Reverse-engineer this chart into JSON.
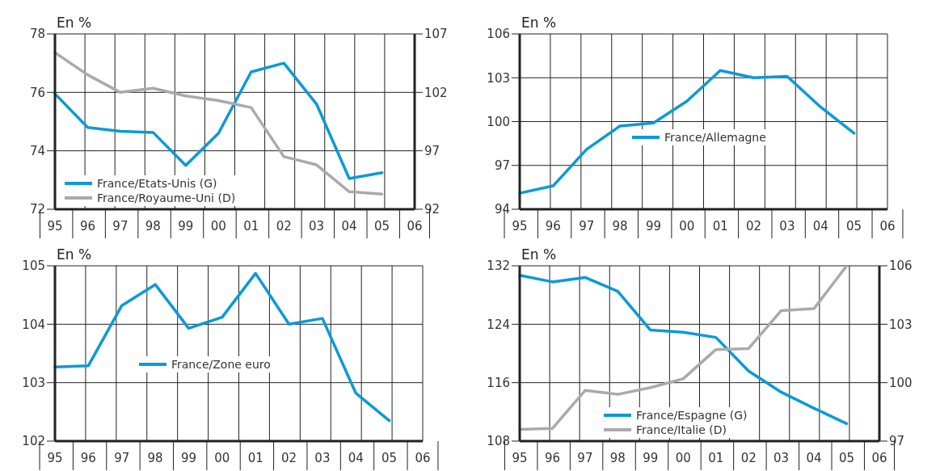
{
  "chart_data": [
    {
      "type": "line",
      "ylabel": "En %",
      "categories": [
        "95",
        "96",
        "97",
        "98",
        "99",
        "00",
        "01",
        "02",
        "03",
        "04",
        "05",
        "06"
      ],
      "ylim": [
        72,
        78
      ],
      "yticks": [
        72,
        74,
        76,
        78
      ],
      "y2lim": [
        92,
        107
      ],
      "y2ticks": [
        92,
        97,
        102,
        107
      ],
      "grid": true,
      "legend": "bottom left",
      "marker": "none",
      "line_style": "solid",
      "series": [
        {
          "name": "France/Etats-Unis (G)",
          "color": "#0a9ad7",
          "values": [
            75.95,
            74.8,
            74.67,
            74.63,
            73.5,
            74.6,
            76.7,
            77.0,
            75.6,
            73.05,
            73.25,
            null
          ]
        },
        {
          "name": "France/Royaume-Uni (D)",
          "color": "#aaaaaa",
          "axis": "y2",
          "values": [
            105.4,
            103.5,
            102.0,
            102.35,
            101.7,
            101.3,
            100.7,
            96.5,
            95.8,
            93.5,
            93.3,
            null
          ]
        }
      ]
    },
    {
      "type": "line",
      "ylabel": "En %",
      "categories": [
        "95",
        "96",
        "97",
        "98",
        "99",
        "00",
        "01",
        "02",
        "03",
        "04",
        "05",
        "06"
      ],
      "ylim": [
        94,
        106
      ],
      "yticks": [
        94,
        97,
        100,
        103,
        106
      ],
      "grid": true,
      "legend": "center",
      "marker": "none",
      "line_style": "solid",
      "series": [
        {
          "name": "France/Allemagne",
          "color": "#0a9ad7",
          "values": [
            95.1,
            95.6,
            98.1,
            99.7,
            99.9,
            101.4,
            103.5,
            103.0,
            103.1,
            101.0,
            99.2,
            null
          ]
        }
      ]
    },
    {
      "type": "line",
      "ylabel": "En %",
      "categories": [
        "95",
        "96",
        "97",
        "98",
        "99",
        "00",
        "01",
        "02",
        "03",
        "04",
        "05",
        "06"
      ],
      "ylim": [
        102,
        105
      ],
      "yticks": [
        102,
        103,
        104,
        105
      ],
      "grid": true,
      "legend": "center left",
      "marker": "none",
      "line_style": "solid",
      "series": [
        {
          "name": "France/Zone euro",
          "color": "#0a9ad7",
          "values": [
            103.27,
            103.29,
            104.32,
            104.68,
            103.93,
            104.12,
            104.87,
            104.0,
            104.1,
            102.82,
            102.35,
            null
          ]
        }
      ]
    },
    {
      "type": "line",
      "ylabel": "En %",
      "categories": [
        "95",
        "96",
        "97",
        "98",
        "99",
        "00",
        "01",
        "02",
        "03",
        "04",
        "05",
        "06"
      ],
      "ylim": [
        108,
        132
      ],
      "yticks": [
        108,
        116,
        124,
        132
      ],
      "y2lim": [
        97,
        106
      ],
      "y2ticks": [
        97,
        100,
        103,
        106
      ],
      "grid": true,
      "legend": "bottom left",
      "marker": "none",
      "line_style": "solid",
      "series": [
        {
          "name": "France/Espagne (G)",
          "color": "#0a9ad7",
          "values": [
            130.7,
            129.8,
            130.4,
            128.5,
            123.2,
            122.9,
            122.2,
            117.6,
            114.7,
            112.5,
            110.4,
            null
          ]
        },
        {
          "name": "France/Italie (D)",
          "color": "#aaaaaa",
          "axis": "y2",
          "values": [
            97.6,
            97.65,
            99.6,
            99.4,
            99.75,
            100.2,
            101.7,
            101.75,
            103.7,
            103.8,
            106.0,
            null
          ]
        }
      ]
    }
  ]
}
